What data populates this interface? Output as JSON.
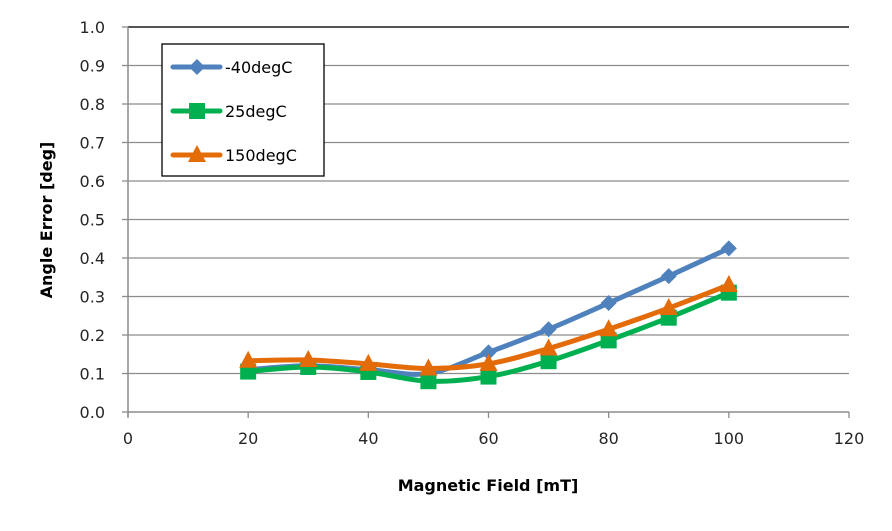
{
  "chart_data": {
    "type": "line",
    "title": "",
    "xlabel": "Magnetic Field [mT]",
    "ylabel": "Angle Error [deg]",
    "xlim": [
      0,
      120
    ],
    "ylim": [
      0.0,
      1.0
    ],
    "x_ticks": [
      "0",
      "20",
      "40",
      "60",
      "80",
      "100",
      "120"
    ],
    "x_tick_values": [
      0,
      20,
      40,
      60,
      80,
      100,
      120
    ],
    "y_ticks": [
      "0.0",
      "0.1",
      "0.2",
      "0.3",
      "0.4",
      "0.5",
      "0.6",
      "0.7",
      "0.8",
      "0.9",
      "1.0"
    ],
    "y_tick_values": [
      0.0,
      0.1,
      0.2,
      0.3,
      0.4,
      0.5,
      0.6,
      0.7,
      0.8,
      0.9,
      1.0
    ],
    "grid": "horizontal",
    "legend_position": "top-left",
    "x": [
      20,
      30,
      40,
      50,
      60,
      70,
      80,
      90,
      100
    ],
    "series": [
      {
        "name": "-40degC",
        "marker": "diamond",
        "color": "#4F81BD",
        "values": [
          0.11,
          0.12,
          0.11,
          0.1,
          0.155,
          0.215,
          0.283,
          0.353,
          0.425
        ]
      },
      {
        "name": "25degC",
        "marker": "square",
        "color": "#00B050",
        "values": [
          0.105,
          0.117,
          0.104,
          0.08,
          0.092,
          0.132,
          0.186,
          0.245,
          0.31
        ]
      },
      {
        "name": "150degC",
        "marker": "triangle",
        "color": "#E36C09",
        "values": [
          0.133,
          0.135,
          0.125,
          0.113,
          0.125,
          0.165,
          0.215,
          0.27,
          0.33
        ]
      }
    ]
  }
}
